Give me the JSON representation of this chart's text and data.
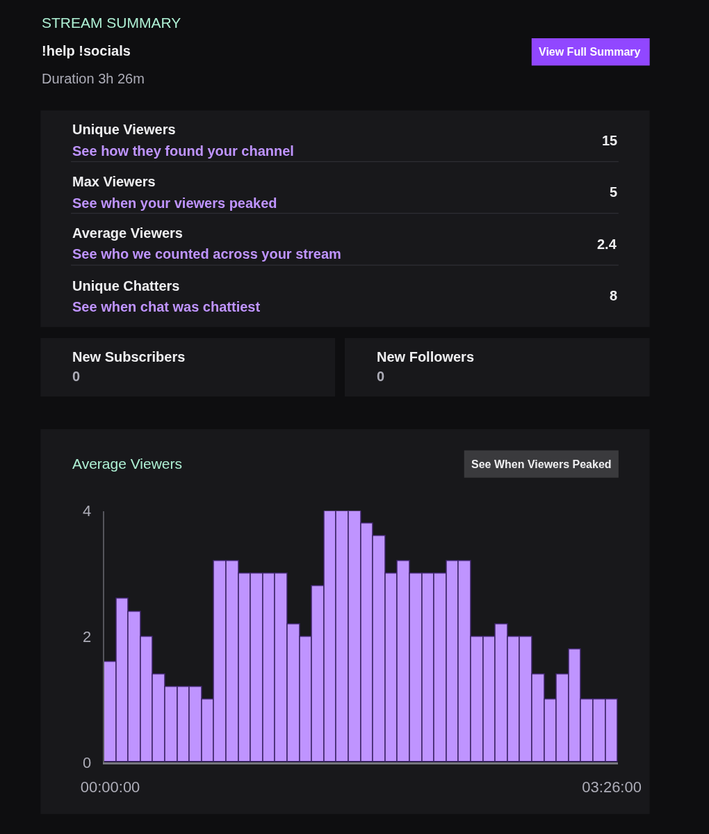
{
  "chart_data": [
    {
      "type": "other",
      "title": "STREAM SUMMARY",
      "subtitle": "!help !socials",
      "annotations": [
        "View Full Summary",
        "Duration 3h 26m",
        "Unique Viewers",
        "See how they found your channel",
        "15",
        "Max Viewers",
        "See when your viewers peaked",
        "5",
        "Average Viewers",
        "See who we counted across your stream",
        "2.4",
        "Unique Chatters",
        "See when chat was chattiest",
        "8",
        "New Subscribers",
        "0",
        "New Followers",
        "0"
      ]
    },
    {
      "type": "bar",
      "title": "Average Viewers",
      "annotations": [
        "See When Viewers Peaked"
      ],
      "categories": [
        "00:00:00",
        null,
        null,
        null,
        null,
        null,
        null,
        null,
        null,
        null,
        null,
        null,
        null,
        null,
        null,
        null,
        null,
        null,
        null,
        null,
        null,
        null,
        null,
        null,
        null,
        null,
        null,
        null,
        null,
        null,
        null,
        null,
        null,
        null,
        null,
        null,
        null,
        null,
        null,
        null,
        null,
        "03:26:00"
      ],
      "values": [
        1.6,
        2.6,
        2.4,
        2.0,
        1.4,
        1.2,
        1.2,
        1.2,
        1.0,
        3.2,
        3.2,
        3.0,
        3.0,
        3.0,
        3.0,
        2.2,
        2.0,
        2.8,
        4.0,
        4.0,
        4.0,
        3.8,
        3.6,
        3.0,
        3.2,
        3.0,
        3.0,
        3.0,
        3.2,
        3.2,
        2.0,
        2.0,
        2.2,
        2.0,
        2.0,
        1.4,
        1.0,
        1.4,
        1.8,
        1.0,
        1.0,
        1.0
      ],
      "color": "#bf94ff",
      "ylim": [
        0,
        4
      ],
      "yticks": [
        0,
        2,
        4
      ],
      "grid": false
    }
  ]
}
